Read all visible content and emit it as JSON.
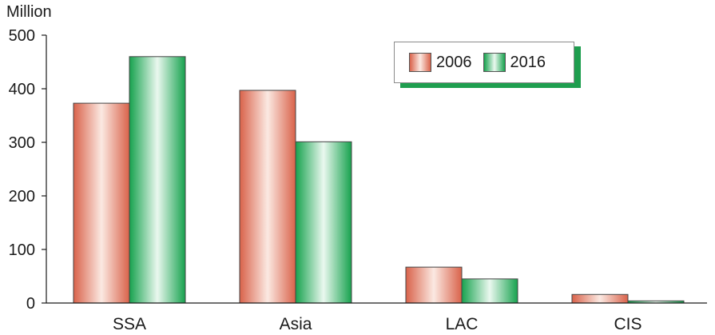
{
  "chart_data": {
    "type": "bar",
    "ylabel": "Million",
    "xlabel": "",
    "title": "",
    "ylim": [
      0,
      500
    ],
    "yticks": [
      0,
      100,
      200,
      300,
      400,
      500
    ],
    "categories": [
      "SSA",
      "Asia",
      "LAC",
      "CIS"
    ],
    "series": [
      {
        "name": "2006",
        "values": [
          373,
          397,
          67,
          16
        ]
      },
      {
        "name": "2016",
        "values": [
          460,
          301,
          45,
          4
        ]
      }
    ],
    "legend_position": "top-right",
    "grid": false
  },
  "colors": {
    "2006_edge": "#d9624a",
    "2006_mid": "#fbe9e2",
    "2016_edge": "#17a24e",
    "2016_mid": "#eaf8ef",
    "axis": "#1a1a1a",
    "bar_outline": "#444444"
  }
}
